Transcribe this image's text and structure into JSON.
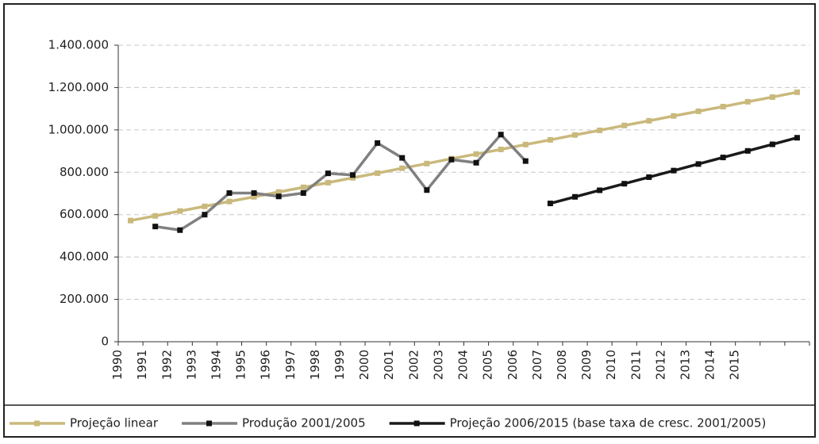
{
  "chart_data": {
    "type": "line",
    "categories": [
      "1990",
      "1991",
      "1992",
      "1993",
      "1994",
      "1995",
      "1996",
      "1997",
      "1998",
      "1999",
      "2000",
      "2001",
      "2002",
      "2003",
      "2004",
      "2005",
      "2006",
      "2007",
      "2008",
      "2009",
      "2010",
      "2011",
      "2012",
      "2013",
      "2014",
      "2015",
      null,
      null
    ],
    "series": [
      {
        "name": "Projeção linear",
        "color": "#c9b97c",
        "values": [
          572000,
          594000,
          617000,
          639000,
          662000,
          684000,
          707000,
          729000,
          751000,
          774000,
          796000,
          819000,
          841000,
          864000,
          886000,
          908000,
          931000,
          953000,
          976000,
          998000,
          1021000,
          1043000,
          1066000,
          1088000,
          1110000,
          1133000,
          1155000,
          1178000
        ]
      },
      {
        "name": "Produção 2001/2005",
        "color": "#808080",
        "values": [
          null,
          544000,
          527000,
          600000,
          702000,
          702000,
          686000,
          702000,
          795000,
          787000,
          938000,
          868000,
          716000,
          860000,
          845000,
          978000,
          853000,
          null,
          null,
          null,
          null,
          null,
          null,
          null,
          null,
          null,
          null,
          null
        ]
      },
      {
        "name": "Projeção 2006/2015 (base taxa de cresc. 2001/2005)",
        "color": "#1a1a1a",
        "values": [
          null,
          null,
          null,
          null,
          null,
          null,
          null,
          null,
          null,
          null,
          null,
          null,
          null,
          null,
          null,
          null,
          null,
          653000,
          684000,
          715000,
          746000,
          777000,
          808000,
          839000,
          870000,
          901000,
          932000,
          963000
        ]
      }
    ],
    "ylim": [
      0,
      1400000
    ],
    "yticks": [
      0,
      {
        "value": 200000,
        "label": "200.000"
      },
      {
        "value": 400000,
        "label": "400.000"
      },
      {
        "value": 600000,
        "label": "600.000"
      },
      {
        "value": 800000,
        "label": "800.000"
      },
      {
        "value": 1000000,
        "label": "1.000.000"
      },
      {
        "value": 1200000,
        "label": "1.200.000"
      },
      {
        "value": 1400000,
        "label": "1.400.000"
      }
    ],
    "grid": true,
    "legend": "bottom"
  }
}
